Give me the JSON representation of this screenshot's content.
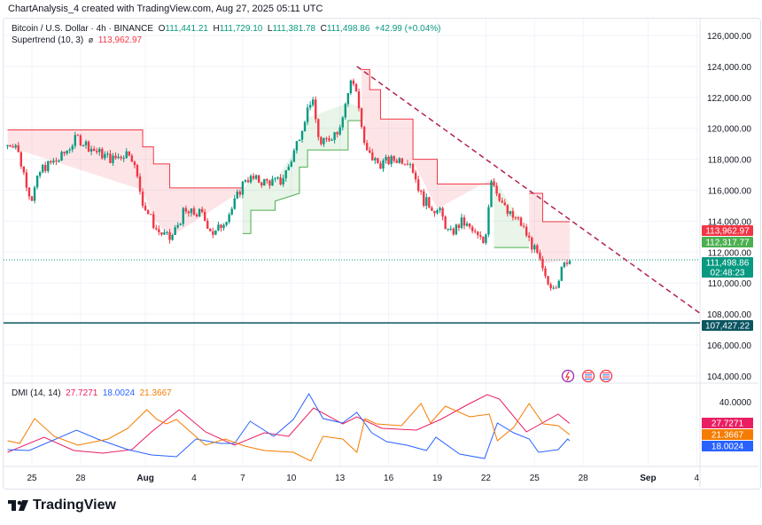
{
  "header": {
    "text": "ChartAnalysis_4 created with TradingView.com, Aug 27, 2025 05:11 UTC"
  },
  "legend": {
    "symbol": "Bitcoin / U.S. Dollar · 4h · BINANCE",
    "o_label": "O",
    "o": "111,441.21",
    "h_label": "H",
    "h": "111,729.10",
    "l_label": "L",
    "l": "111,381.78",
    "c_label": "C",
    "c": "111,498.86",
    "change": "+42.99 (+0.04%)",
    "supertrend_label": "Supertrend (10, 3)",
    "supertrend_icon": "hidden-eye-icon",
    "supertrend_value": "113,962.97"
  },
  "dmi_legend": {
    "label": "DMI (14, 14)",
    "v1": "27.7271",
    "v2": "18.0024",
    "v3": "21.3667"
  },
  "colors": {
    "up": "#089981",
    "down": "#f23645",
    "st_up": "#4caf50",
    "st_down": "#f23645",
    "adx": "#e91e63",
    "plus_di": "#2962ff",
    "minus_di": "#f57c00",
    "trendline": "#b2224d",
    "support": "#0b5560"
  },
  "event_icons": [
    "lightning-icon",
    "us-flag-icon",
    "us-flag-icon"
  ],
  "logo": {
    "text": "TradingView"
  },
  "chart_data": [
    {
      "type": "candlestick",
      "title": "Bitcoin / U.S. Dollar · 4h · BINANCE",
      "ylim": [
        103000,
        127000
      ],
      "xlim": [
        "2025-07-23T12:00",
        "2025-09-05T12:00"
      ],
      "grid": true,
      "y_ticks": [
        "126,000.00",
        "124,000.00",
        "122,000.00",
        "120,000.00",
        "118,000.00",
        "116,000.00",
        "114,000.00",
        "112,000.00",
        "110,000.00",
        "108,000.00",
        "106,000.00",
        "104,000.00"
      ],
      "y_tick_values": [
        126000,
        124000,
        122000,
        120000,
        118000,
        116000,
        114000,
        112000,
        110000,
        108000,
        106000,
        104000
      ],
      "x_ticks": [
        {
          "label": "25",
          "date": "2025-07-25",
          "bold": false
        },
        {
          "label": "28",
          "date": "2025-07-28",
          "bold": false
        },
        {
          "label": "Aug",
          "date": "2025-08-01",
          "bold": true
        },
        {
          "label": "4",
          "date": "2025-08-04",
          "bold": false
        },
        {
          "label": "7",
          "date": "2025-08-07",
          "bold": false
        },
        {
          "label": "10",
          "date": "2025-08-10",
          "bold": false
        },
        {
          "label": "13",
          "date": "2025-08-13",
          "bold": false
        },
        {
          "label": "16",
          "date": "2025-08-16",
          "bold": false
        },
        {
          "label": "19",
          "date": "2025-08-19",
          "bold": false
        },
        {
          "label": "22",
          "date": "2025-08-22",
          "bold": false
        },
        {
          "label": "25",
          "date": "2025-08-25",
          "bold": false
        },
        {
          "label": "28",
          "date": "2025-08-28",
          "bold": false
        },
        {
          "label": "Sep",
          "date": "2025-09-01",
          "bold": true
        },
        {
          "label": "4",
          "date": "2025-09-04",
          "bold": false
        }
      ],
      "price_path": [
        [
          "2025-07-23T12:00",
          118840
        ],
        [
          "2025-07-24T03:00",
          119120
        ],
        [
          "2025-07-25T03:00",
          115400
        ],
        [
          "2025-07-25T18:00",
          117400
        ],
        [
          "2025-07-26T21:00",
          118000
        ],
        [
          "2025-07-27T23:00",
          119400
        ],
        [
          "2025-07-29T01:00",
          118550
        ],
        [
          "2025-07-30T03:00",
          117980
        ],
        [
          "2025-07-31T06:00",
          118550
        ],
        [
          "2025-08-01T01:00",
          115100
        ],
        [
          "2025-08-01T21:00",
          113400
        ],
        [
          "2025-08-02T17:00",
          112800
        ],
        [
          "2025-08-03T12:00",
          114500
        ],
        [
          "2025-08-04T14:00",
          114500
        ],
        [
          "2025-08-05T10:00",
          113100
        ],
        [
          "2025-08-06T12:00",
          114800
        ],
        [
          "2025-08-07T08:00",
          116800
        ],
        [
          "2025-08-08T10:00",
          116550
        ],
        [
          "2025-08-09T12:00",
          116550
        ],
        [
          "2025-08-10T02:00",
          117700
        ],
        [
          "2025-08-10T21:00",
          120300
        ],
        [
          "2025-08-11T10:00",
          122000
        ],
        [
          "2025-08-11T23:00",
          118840
        ],
        [
          "2025-08-13T02:00",
          119980
        ],
        [
          "2025-08-13T21:00",
          123130
        ],
        [
          "2025-08-14T04:00",
          122560
        ],
        [
          "2025-08-14T17:00",
          118550
        ],
        [
          "2025-08-15T13:00",
          117700
        ],
        [
          "2025-08-16T15:00",
          118000
        ],
        [
          "2025-08-17T11:00",
          118000
        ],
        [
          "2025-08-18T06:00",
          115400
        ],
        [
          "2025-08-19T09:00",
          114500
        ],
        [
          "2025-08-19T22:00",
          113100
        ],
        [
          "2025-08-20T17:00",
          113970
        ],
        [
          "2025-08-21T13:00",
          113100
        ],
        [
          "2025-08-22T02:00",
          112530
        ],
        [
          "2025-08-22T12:00",
          116800
        ],
        [
          "2025-08-23T11:00",
          114500
        ],
        [
          "2025-08-24T06:00",
          113970
        ],
        [
          "2025-08-24T20:00",
          112800
        ],
        [
          "2025-08-25T09:00",
          111670
        ],
        [
          "2025-08-25T22:00",
          109950
        ],
        [
          "2025-08-26T11:00",
          109950
        ],
        [
          "2025-08-27T04:00",
          111499
        ]
      ],
      "supertrend": [
        {
          "trend": "down",
          "points": [
            [
              "2025-07-23T12:00",
              119900
            ],
            [
              "2025-07-31T20:00",
              119900
            ],
            [
              "2025-07-31T20:00",
              118800
            ],
            [
              "2025-08-01T12:00",
              118800
            ],
            [
              "2025-08-01T12:00",
              117700
            ],
            [
              "2025-08-02T12:00",
              117700
            ],
            [
              "2025-08-02T12:00",
              116150
            ],
            [
              "2025-08-07T00:00",
              116150
            ]
          ]
        },
        {
          "trend": "up",
          "points": [
            [
              "2025-08-07T00:00",
              113200
            ],
            [
              "2025-08-07T12:00",
              113200
            ],
            [
              "2025-08-07T12:00",
              114700
            ],
            [
              "2025-08-09T00:00",
              114700
            ],
            [
              "2025-08-09T00:00",
              115300
            ],
            [
              "2025-08-10T12:00",
              115800
            ],
            [
              "2025-08-10T12:00",
              117500
            ],
            [
              "2025-08-11T00:00",
              117500
            ],
            [
              "2025-08-11T00:00",
              118600
            ],
            [
              "2025-08-13T12:00",
              118600
            ],
            [
              "2025-08-13T12:00",
              120500
            ],
            [
              "2025-08-14T08:00",
              120500
            ]
          ]
        },
        {
          "trend": "down",
          "points": [
            [
              "2025-08-14T08:00",
              123800
            ],
            [
              "2025-08-14T20:00",
              123800
            ],
            [
              "2025-08-14T20:00",
              122500
            ],
            [
              "2025-08-15T12:00",
              122500
            ],
            [
              "2025-08-15T12:00",
              120600
            ],
            [
              "2025-08-17T12:00",
              120600
            ],
            [
              "2025-08-17T12:00",
              118000
            ],
            [
              "2025-08-19T00:00",
              118000
            ],
            [
              "2025-08-19T00:00",
              116400
            ],
            [
              "2025-08-22T12:00",
              116400
            ]
          ]
        },
        {
          "trend": "up",
          "points": [
            [
              "2025-08-22T12:00",
              112300
            ],
            [
              "2025-08-24T16:00",
              112300
            ]
          ]
        },
        {
          "trend": "down",
          "points": [
            [
              "2025-08-24T16:00",
              115800
            ],
            [
              "2025-08-25T12:00",
              115800
            ],
            [
              "2025-08-25T12:00",
              113963
            ],
            [
              "2025-08-27T04:00",
              113963
            ]
          ]
        }
      ],
      "trendline": [
        [
          "2025-08-14T01:00",
          124000
        ],
        [
          "2025-09-04T08:00",
          107950
        ]
      ],
      "horizontal_line": {
        "value": 107427.22,
        "label": "107,427.22"
      },
      "last_price_line": {
        "value": 111498.86
      },
      "price_labels": [
        {
          "text": "113,962.97",
          "value": 113962.97,
          "color": "#f23645"
        },
        {
          "text": "112,317.77",
          "value": 112317.77,
          "color": "#4caf50"
        },
        {
          "text": "111,498.86",
          "value": 111498.86,
          "color": "#089981",
          "sub": "02:48:23"
        },
        {
          "text": "107,427.22",
          "value": 107427.22,
          "color": "#0b5560"
        }
      ]
    },
    {
      "type": "line",
      "title": "DMI (14, 14)",
      "ylim": [
        4,
        46.5
      ],
      "y_ticks": [
        "40.0000"
      ],
      "y_tick_values": [
        40
      ],
      "series": [
        {
          "name": "27.7271",
          "color": "#e91e63",
          "points": [
            [
              "2025-07-23T12:00",
              11.5
            ],
            [
              "2025-07-25T18:00",
              20
            ],
            [
              "2025-07-27T14:00",
              12.5
            ],
            [
              "2025-07-29T09:00",
              11
            ],
            [
              "2025-07-31T04:00",
              13
            ],
            [
              "2025-08-01T09:00",
              23
            ],
            [
              "2025-08-03T02:00",
              35.5
            ],
            [
              "2025-08-04T17:00",
              23
            ],
            [
              "2025-08-06T12:00",
              15.5
            ],
            [
              "2025-08-08T08:00",
              22.5
            ],
            [
              "2025-08-09T20:00",
              20.5
            ],
            [
              "2025-08-11T09:00",
              36.5
            ],
            [
              "2025-08-13T04:00",
              27.5
            ],
            [
              "2025-08-14T01:00",
              31.5
            ],
            [
              "2025-08-15T14:00",
              25
            ],
            [
              "2025-08-17T17:00",
              24
            ],
            [
              "2025-08-19T05:00",
              30
            ],
            [
              "2025-08-21T00:00",
              39
            ],
            [
              "2025-08-22T02:00",
              44
            ],
            [
              "2025-08-22T20:00",
              41.5
            ],
            [
              "2025-08-24T12:00",
              23
            ],
            [
              "2025-08-26T11:00",
              33
            ],
            [
              "2025-08-27T04:00",
              27.7271
            ]
          ]
        },
        {
          "name": "18.0024",
          "color": "#2962ff",
          "points": [
            [
              "2025-07-23T12:00",
              13
            ],
            [
              "2025-07-24T20:00",
              12.5
            ],
            [
              "2025-07-27T18:00",
              24
            ],
            [
              "2025-07-29T01:00",
              19
            ],
            [
              "2025-07-30T22:00",
              13
            ],
            [
              "2025-08-01T09:00",
              10
            ],
            [
              "2025-08-02T22:00",
              9
            ],
            [
              "2025-08-04T03:00",
              19
            ],
            [
              "2025-08-05T15:00",
              16.5
            ],
            [
              "2025-08-06T12:00",
              16.5
            ],
            [
              "2025-08-07T11:00",
              29
            ],
            [
              "2025-08-08T22:00",
              20.5
            ],
            [
              "2025-08-10T03:00",
              30
            ],
            [
              "2025-08-11T02:00",
              44.5
            ],
            [
              "2025-08-11T23:00",
              30.5
            ],
            [
              "2025-08-13T04:00",
              28
            ],
            [
              "2025-08-14T01:00",
              34
            ],
            [
              "2025-08-14T23:00",
              22.5
            ],
            [
              "2025-08-15T21:00",
              17.5
            ],
            [
              "2025-08-17T03:00",
              15.5
            ],
            [
              "2025-08-18T08:00",
              12.5
            ],
            [
              "2025-08-18T22:00",
              20
            ],
            [
              "2025-08-20T09:00",
              10.5
            ],
            [
              "2025-08-21T22:00",
              8
            ],
            [
              "2025-08-22T17:00",
              28
            ],
            [
              "2025-08-23T17:00",
              22.5
            ],
            [
              "2025-08-24T16:00",
              19
            ],
            [
              "2025-08-25T06:00",
              11.5
            ],
            [
              "2025-08-26T11:00",
              13
            ],
            [
              "2025-08-27T01:00",
              19
            ],
            [
              "2025-08-27T04:00",
              18.0024
            ]
          ]
        },
        {
          "name": "21.3667",
          "color": "#f57c00",
          "points": [
            [
              "2025-07-23T12:00",
              18
            ],
            [
              "2025-07-24T06:00",
              16.5
            ],
            [
              "2025-07-25T04:00",
              30.5
            ],
            [
              "2025-07-26T09:00",
              20.5
            ],
            [
              "2025-07-27T20:00",
              15.5
            ],
            [
              "2025-07-29T17:00",
              19
            ],
            [
              "2025-07-30T22:00",
              25
            ],
            [
              "2025-08-01T02:00",
              35.5
            ],
            [
              "2025-08-01T17:00",
              30
            ],
            [
              "2025-08-02T07:00",
              27.5
            ],
            [
              "2025-08-02T22:00",
              30
            ],
            [
              "2025-08-04T17:00",
              15.5
            ],
            [
              "2025-08-05T22:00",
              19
            ],
            [
              "2025-08-07T03:00",
              15
            ],
            [
              "2025-08-08T08:00",
              12.5
            ],
            [
              "2025-08-10T03:00",
              11.5
            ],
            [
              "2025-08-11T05:00",
              6.5
            ],
            [
              "2025-08-11T23:00",
              20.5
            ],
            [
              "2025-08-13T04:00",
              19
            ],
            [
              "2025-08-14T01:00",
              11.5
            ],
            [
              "2025-08-14T13:00",
              30.5
            ],
            [
              "2025-08-15T06:00",
              27.5
            ],
            [
              "2025-08-16T19:00",
              26.5
            ],
            [
              "2025-08-18T00:00",
              39
            ],
            [
              "2025-08-18T14:00",
              28
            ],
            [
              "2025-08-19T12:00",
              37.5
            ],
            [
              "2025-08-21T00:00",
              31.5
            ],
            [
              "2025-08-22T05:00",
              33
            ],
            [
              "2025-08-22T17:00",
              18
            ],
            [
              "2025-08-23T17:00",
              25.5
            ],
            [
              "2025-08-24T16:00",
              39
            ],
            [
              "2025-08-25T13:00",
              27.5
            ],
            [
              "2025-08-26T11:00",
              26.5
            ],
            [
              "2025-08-27T04:00",
              21.3667
            ]
          ]
        }
      ],
      "value_labels": [
        {
          "text": "27.7271",
          "value": 27.7271,
          "color": "#e91e63"
        },
        {
          "text": "21.3667",
          "value": 21.3667,
          "color": "#f57c00"
        },
        {
          "text": "18.0024",
          "value": 18.0024,
          "color": "#2962ff"
        }
      ]
    }
  ]
}
